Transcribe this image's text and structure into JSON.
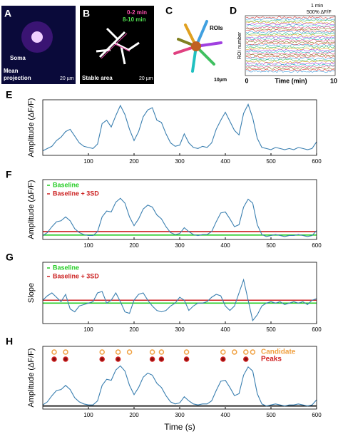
{
  "images": {
    "A": {
      "label": "A",
      "soma": "Soma",
      "caption1": "Mean",
      "caption2": "projection",
      "scale": "20 µm"
    },
    "B": {
      "label": "B",
      "legend1": "0-2 min",
      "legend2": "8-10 min",
      "caption": "Stable area",
      "scale": "20 µm"
    },
    "C": {
      "label": "C",
      "rois": "ROIs",
      "scale": "10µm"
    },
    "D": {
      "label": "D",
      "ylabel": "ROI number",
      "xlabel": "Time (min)",
      "xstart": "0",
      "xend": "10",
      "scale_time": "1 min",
      "scale_amp": "500% ΔF/F"
    }
  },
  "chart_data": [
    {
      "type": "line",
      "panel": "E",
      "ylabel": "Amplitude (ΔF/F)",
      "color": "#3a7fb0",
      "x": [
        0,
        10,
        20,
        30,
        40,
        50,
        60,
        70,
        80,
        90,
        100,
        110,
        120,
        130,
        140,
        150,
        160,
        170,
        180,
        190,
        200,
        210,
        220,
        230,
        240,
        250,
        260,
        270,
        280,
        290,
        300,
        310,
        320,
        330,
        340,
        350,
        360,
        370,
        380,
        390,
        400,
        410,
        420,
        430,
        440,
        450,
        460,
        470,
        480,
        490,
        500,
        510,
        520,
        530,
        540,
        550,
        560,
        570,
        580,
        590,
        600
      ],
      "values": [
        0.1,
        0.3,
        0.5,
        1.0,
        1.3,
        1.8,
        2.0,
        1.4,
        0.8,
        0.5,
        0.4,
        0.3,
        0.7,
        2.5,
        2.8,
        2.2,
        3.2,
        4.1,
        3.3,
        2.0,
        1.0,
        1.8,
        3.1,
        3.7,
        3.9,
        2.8,
        2.6,
        1.6,
        0.8,
        0.5,
        0.6,
        1.6,
        0.8,
        0.4,
        0.3,
        0.5,
        0.4,
        0.8,
        2.0,
        2.8,
        3.5,
        2.7,
        1.9,
        1.5,
        3.4,
        4.2,
        3.0,
        1.2,
        0.4,
        0.3,
        0.2,
        0.4,
        0.3,
        0.2,
        0.3,
        0.2,
        0.4,
        0.3,
        0.2,
        0.3,
        0.9
      ],
      "xlim": [
        0,
        600
      ],
      "xticks": [
        100,
        200,
        300,
        400,
        500,
        600
      ],
      "ylim": [
        -0.3,
        4.6
      ]
    },
    {
      "type": "line",
      "panel": "F",
      "ylabel": "Amplitude (ΔF/F)",
      "color": "#3a7fb0",
      "x": [
        0,
        10,
        20,
        30,
        40,
        50,
        60,
        70,
        80,
        90,
        100,
        110,
        120,
        130,
        140,
        150,
        160,
        170,
        180,
        190,
        200,
        210,
        220,
        230,
        240,
        250,
        260,
        270,
        280,
        290,
        300,
        310,
        320,
        330,
        340,
        350,
        360,
        370,
        380,
        390,
        400,
        410,
        420,
        430,
        440,
        450,
        460,
        470,
        480,
        490,
        500,
        510,
        520,
        530,
        540,
        550,
        560,
        570,
        580,
        590,
        600
      ],
      "values": [
        0.1,
        0.4,
        1.0,
        1.5,
        1.6,
        2.0,
        1.6,
        0.8,
        0.4,
        0.2,
        0.1,
        0.1,
        0.5,
        2.0,
        2.6,
        2.5,
        3.5,
        3.9,
        3.4,
        2.0,
        1.1,
        1.8,
        2.8,
        3.2,
        3.0,
        2.2,
        1.8,
        1.0,
        0.4,
        0.2,
        0.3,
        0.9,
        0.5,
        0.2,
        0.1,
        0.2,
        0.2,
        0.5,
        1.5,
        2.4,
        2.5,
        1.8,
        1.0,
        1.2,
        3.0,
        3.8,
        3.4,
        1.2,
        0.2,
        0.0,
        0.1,
        0.2,
        0.1,
        0.0,
        0.1,
        0.1,
        0.2,
        0.1,
        0.0,
        0.1,
        0.6
      ],
      "xlim": [
        0,
        600
      ],
      "xticks": [
        100,
        200,
        300,
        400,
        500,
        600
      ],
      "ylim": [
        -0.3,
        5.8
      ],
      "hlines": [
        {
          "name": "Baseline",
          "color": "#22cc22",
          "value": 0.15
        },
        {
          "name": "Baseline + 3SD",
          "color": "#cc2222",
          "value": 0.5
        }
      ]
    },
    {
      "type": "line",
      "panel": "G",
      "ylabel": "Slope",
      "color": "#3a7fb0",
      "x": [
        0,
        10,
        20,
        30,
        40,
        50,
        60,
        70,
        80,
        90,
        100,
        110,
        120,
        130,
        140,
        150,
        160,
        170,
        180,
        190,
        200,
        210,
        220,
        230,
        240,
        250,
        260,
        270,
        280,
        290,
        300,
        310,
        320,
        330,
        340,
        350,
        360,
        370,
        380,
        390,
        400,
        410,
        420,
        430,
        440,
        450,
        460,
        470,
        480,
        490,
        500,
        510,
        520,
        530,
        540,
        550,
        560,
        570,
        580,
        590,
        600
      ],
      "values": [
        0.1,
        0.25,
        0.35,
        0.2,
        0.05,
        0.3,
        -0.2,
        -0.3,
        -0.1,
        -0.05,
        0.0,
        0.05,
        0.35,
        0.4,
        0.0,
        0.1,
        0.35,
        0.05,
        -0.3,
        -0.35,
        0.1,
        0.3,
        0.35,
        0.1,
        -0.1,
        -0.25,
        -0.3,
        -0.25,
        -0.1,
        0.0,
        0.2,
        0.1,
        -0.25,
        -0.1,
        0.0,
        0.0,
        0.05,
        0.2,
        0.3,
        0.25,
        -0.1,
        -0.25,
        -0.1,
        0.35,
        0.8,
        0.1,
        -0.6,
        -0.4,
        -0.1,
        0.0,
        0.05,
        0.0,
        0.05,
        -0.05,
        0.0,
        0.05,
        0.0,
        0.05,
        -0.05,
        0.1,
        0.15
      ],
      "xlim": [
        0,
        600
      ],
      "xticks": [
        100,
        200,
        300,
        400,
        500,
        600
      ],
      "ylim": [
        -0.7,
        1.4
      ],
      "hlines": [
        {
          "name": "Baseline",
          "color": "#22cc22",
          "value": 0.0
        },
        {
          "name": "Baseline + 3SD",
          "color": "#cc2222",
          "value": 0.1
        }
      ]
    },
    {
      "type": "line",
      "panel": "H",
      "ylabel": "Amplitude (ΔF/F)",
      "xlabel": "Time (s)",
      "color": "#3a7fb0",
      "x": [
        0,
        10,
        20,
        30,
        40,
        50,
        60,
        70,
        80,
        90,
        100,
        110,
        120,
        130,
        140,
        150,
        160,
        170,
        180,
        190,
        200,
        210,
        220,
        230,
        240,
        250,
        260,
        270,
        280,
        290,
        300,
        310,
        320,
        330,
        340,
        350,
        360,
        370,
        380,
        390,
        400,
        410,
        420,
        430,
        440,
        450,
        460,
        470,
        480,
        490,
        500,
        510,
        520,
        530,
        540,
        550,
        560,
        570,
        580,
        590,
        600
      ],
      "values": [
        0.1,
        0.4,
        1.0,
        1.5,
        1.6,
        2.0,
        1.6,
        0.8,
        0.4,
        0.2,
        0.1,
        0.1,
        0.5,
        2.0,
        2.6,
        2.5,
        3.5,
        3.9,
        3.4,
        2.0,
        1.1,
        1.8,
        2.8,
        3.2,
        3.0,
        2.2,
        1.8,
        1.0,
        0.4,
        0.2,
        0.3,
        0.9,
        0.5,
        0.2,
        0.1,
        0.2,
        0.2,
        0.5,
        1.5,
        2.4,
        2.5,
        1.8,
        1.0,
        1.2,
        3.0,
        3.8,
        3.4,
        1.2,
        0.2,
        0.0,
        0.1,
        0.2,
        0.1,
        0.0,
        0.1,
        0.1,
        0.2,
        0.1,
        0.0,
        0.1,
        0.6
      ],
      "xlim": [
        0,
        600
      ],
      "xticks": [
        100,
        200,
        300,
        400,
        500,
        600
      ],
      "ylim": [
        -0.3,
        5.8
      ],
      "hlines": [
        {
          "color": "#000000",
          "value": 0
        }
      ],
      "candidates": {
        "name": "Candidate",
        "color": "#f0a040",
        "x": [
          25,
          50,
          130,
          165,
          190,
          240,
          260,
          315,
          395,
          420,
          445,
          460
        ]
      },
      "peaks": {
        "name": "Peaks",
        "color": "#d02020",
        "x": [
          25,
          50,
          130,
          165,
          240,
          260,
          315,
          395,
          445
        ]
      }
    }
  ]
}
